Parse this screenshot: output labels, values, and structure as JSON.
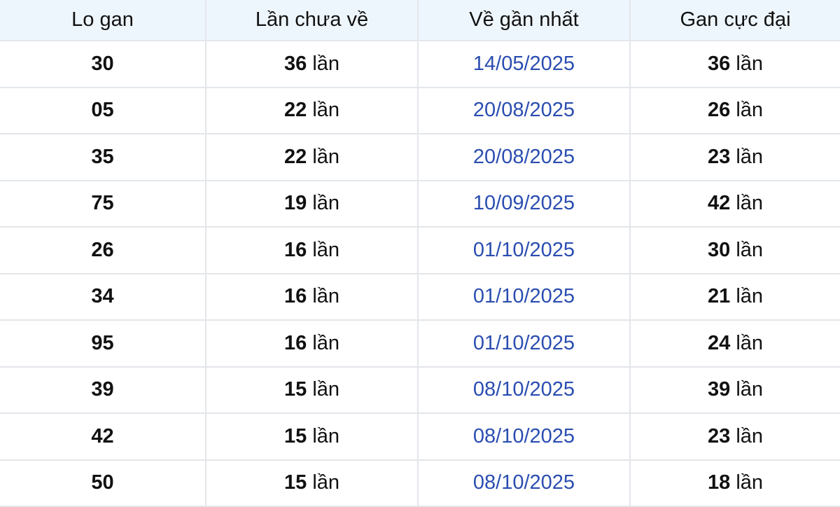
{
  "colors": {
    "header_bg": "#eef6fd",
    "date": "#2a4db0",
    "border": "#e3e6ea"
  },
  "headers": [
    "Lo gan",
    "Lần chưa về",
    "Về gần nhất",
    "Gan cực đại"
  ],
  "unit": "lần",
  "rows": [
    {
      "lo": "30",
      "chua_ve": "36",
      "gan_nhat": "14/05/2025",
      "cuc_dai": "36"
    },
    {
      "lo": "05",
      "chua_ve": "22",
      "gan_nhat": "20/08/2025",
      "cuc_dai": "26"
    },
    {
      "lo": "35",
      "chua_ve": "22",
      "gan_nhat": "20/08/2025",
      "cuc_dai": "23"
    },
    {
      "lo": "75",
      "chua_ve": "19",
      "gan_nhat": "10/09/2025",
      "cuc_dai": "42"
    },
    {
      "lo": "26",
      "chua_ve": "16",
      "gan_nhat": "01/10/2025",
      "cuc_dai": "30"
    },
    {
      "lo": "34",
      "chua_ve": "16",
      "gan_nhat": "01/10/2025",
      "cuc_dai": "21"
    },
    {
      "lo": "95",
      "chua_ve": "16",
      "gan_nhat": "01/10/2025",
      "cuc_dai": "24"
    },
    {
      "lo": "39",
      "chua_ve": "15",
      "gan_nhat": "08/10/2025",
      "cuc_dai": "39"
    },
    {
      "lo": "42",
      "chua_ve": "15",
      "gan_nhat": "08/10/2025",
      "cuc_dai": "23"
    },
    {
      "lo": "50",
      "chua_ve": "15",
      "gan_nhat": "08/10/2025",
      "cuc_dai": "18"
    }
  ]
}
